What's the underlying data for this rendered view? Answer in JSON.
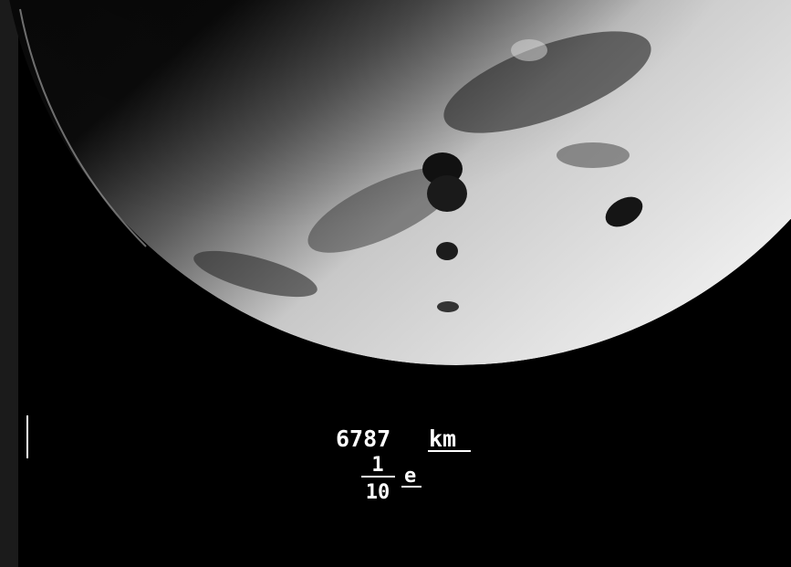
{
  "annotation": {
    "distance": "6787",
    "unit": "km",
    "numerator": "1",
    "denominator": "10",
    "symbol": "e"
  }
}
